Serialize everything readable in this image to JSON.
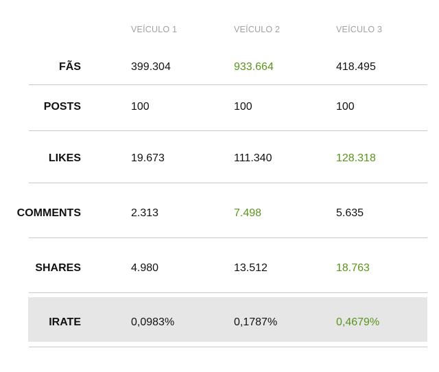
{
  "chart_data": {
    "type": "table",
    "columns": [
      "VEÍCULO 1",
      "VEÍCULO 2",
      "VEÍCULO 3"
    ],
    "rows": [
      {
        "label": "FÃS",
        "values": [
          "399.304",
          "933.664",
          "418.495"
        ],
        "highlight": 1
      },
      {
        "label": "POSTS",
        "values": [
          "100",
          "100",
          "100"
        ],
        "highlight": -1
      },
      {
        "label": "LIKES",
        "values": [
          "19.673",
          "111.340",
          "128.318"
        ],
        "highlight": 2
      },
      {
        "label": "COMMENTS",
        "values": [
          "2.313",
          "7.498",
          "5.635"
        ],
        "highlight": 1
      },
      {
        "label": "SHARES",
        "values": [
          "4.980",
          "13.512",
          "18.763"
        ],
        "highlight": 2
      },
      {
        "label": "IRATE",
        "values": [
          "0,0983%",
          "0,1787%",
          "0,4679%"
        ],
        "highlight": 2
      }
    ],
    "colors": {
      "highlight": "#5a9419",
      "text": "#111111",
      "header": "#a0a0a0",
      "shade": "#e6e6e6"
    }
  }
}
